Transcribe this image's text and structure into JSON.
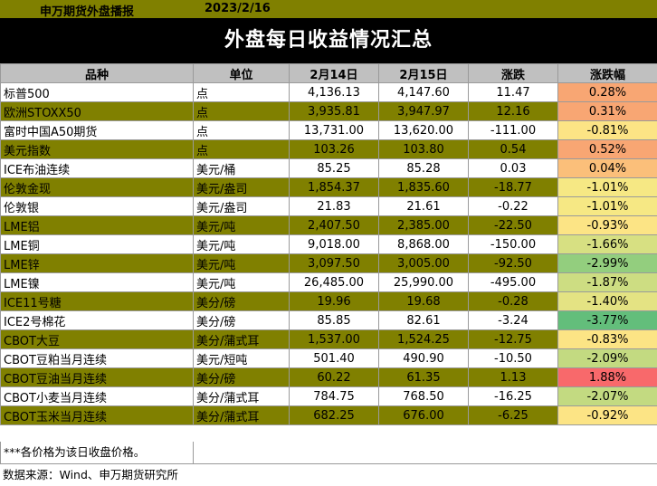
{
  "header": {
    "source": "申万期货外盘播报",
    "date": "2023/2/16"
  },
  "title": "外盘每日收益情况汇总",
  "columns": [
    "品种",
    "单位",
    "2月14日",
    "2月15日",
    "涨跌",
    "涨跌幅"
  ],
  "rows": [
    {
      "name": "标普500",
      "unit": "点",
      "d14": "4,136.13",
      "d15": "4,147.60",
      "chg": "11.47",
      "pct": "0.28%",
      "pct_color": "#f8a673"
    },
    {
      "name": "欧洲STOXX50",
      "unit": "点",
      "d14": "3,935.81",
      "d15": "3,947.97",
      "chg": "12.16",
      "pct": "0.31%",
      "pct_color": "#f8a673"
    },
    {
      "name": "富时中国A50期货",
      "unit": "点",
      "d14": "13,731.00",
      "d15": "13,620.00",
      "chg": "-111.00",
      "pct": "-0.81%",
      "pct_color": "#fce485"
    },
    {
      "name": "美元指数",
      "unit": "点",
      "d14": "103.26",
      "d15": "103.80",
      "chg": "0.54",
      "pct": "0.52%",
      "pct_color": "#f8a673"
    },
    {
      "name": "ICE布油连续",
      "unit": "美元/桶",
      "d14": "85.25",
      "d15": "85.28",
      "chg": "0.03",
      "pct": "0.04%",
      "pct_color": "#fbbf7a"
    },
    {
      "name": "伦敦金现",
      "unit": "美元/盎司",
      "d14": "1,854.37",
      "d15": "1,835.60",
      "chg": "-18.77",
      "pct": "-1.01%",
      "pct_color": "#f6e884"
    },
    {
      "name": "伦敦银",
      "unit": "美元/盎司",
      "d14": "21.83",
      "d15": "21.61",
      "chg": "-0.22",
      "pct": "-1.01%",
      "pct_color": "#f6e884"
    },
    {
      "name": "LME铝",
      "unit": "美元/吨",
      "d14": "2,407.50",
      "d15": "2,385.00",
      "chg": "-22.50",
      "pct": "-0.93%",
      "pct_color": "#fce485"
    },
    {
      "name": "LME铜",
      "unit": "美元/吨",
      "d14": "9,018.00",
      "d15": "8,868.00",
      "chg": "-150.00",
      "pct": "-1.66%",
      "pct_color": "#d7e082"
    },
    {
      "name": "LME锌",
      "unit": "美元/吨",
      "d14": "3,097.50",
      "d15": "3,005.00",
      "chg": "-92.50",
      "pct": "-2.99%",
      "pct_color": "#93ce7e"
    },
    {
      "name": "LME镍",
      "unit": "美元/吨",
      "d14": "26,485.00",
      "d15": "25,990.00",
      "chg": "-495.00",
      "pct": "-1.87%",
      "pct_color": "#cddd82"
    },
    {
      "name": "ICE11号糖",
      "unit": "美分/磅",
      "d14": "19.96",
      "d15": "19.68",
      "chg": "-0.28",
      "pct": "-1.40%",
      "pct_color": "#e4e383"
    },
    {
      "name": "ICE2号棉花",
      "unit": "美分/磅",
      "d14": "85.85",
      "d15": "82.61",
      "chg": "-3.24",
      "pct": "-3.77%",
      "pct_color": "#63be7b"
    },
    {
      "name": "CBOT大豆",
      "unit": "美分/蒲式耳",
      "d14": "1,537.00",
      "d15": "1,524.25",
      "chg": "-12.75",
      "pct": "-0.83%",
      "pct_color": "#fce485"
    },
    {
      "name": "CBOT豆粕当月连续",
      "unit": "美元/短吨",
      "d14": "501.40",
      "d15": "490.90",
      "chg": "-10.50",
      "pct": "-2.09%",
      "pct_color": "#c3da81"
    },
    {
      "name": "CBOT豆油当月连续",
      "unit": "美分/磅",
      "d14": "60.22",
      "d15": "61.35",
      "chg": "1.13",
      "pct": "1.88%",
      "pct_color": "#f8696b"
    },
    {
      "name": "CBOT小麦当月连续",
      "unit": "美分/蒲式耳",
      "d14": "784.75",
      "d15": "768.50",
      "chg": "-16.25",
      "pct": "-2.07%",
      "pct_color": "#c3da81"
    },
    {
      "name": "CBOT玉米当月连续",
      "unit": "美分/蒲式耳",
      "d14": "682.25",
      "d15": "676.00",
      "chg": "-6.25",
      "pct": "-0.92%",
      "pct_color": "#fce485"
    }
  ],
  "footnote1": "***各价格为该日收盘价格。",
  "footnote2": "数据来源：Wind、申万期货研究所"
}
